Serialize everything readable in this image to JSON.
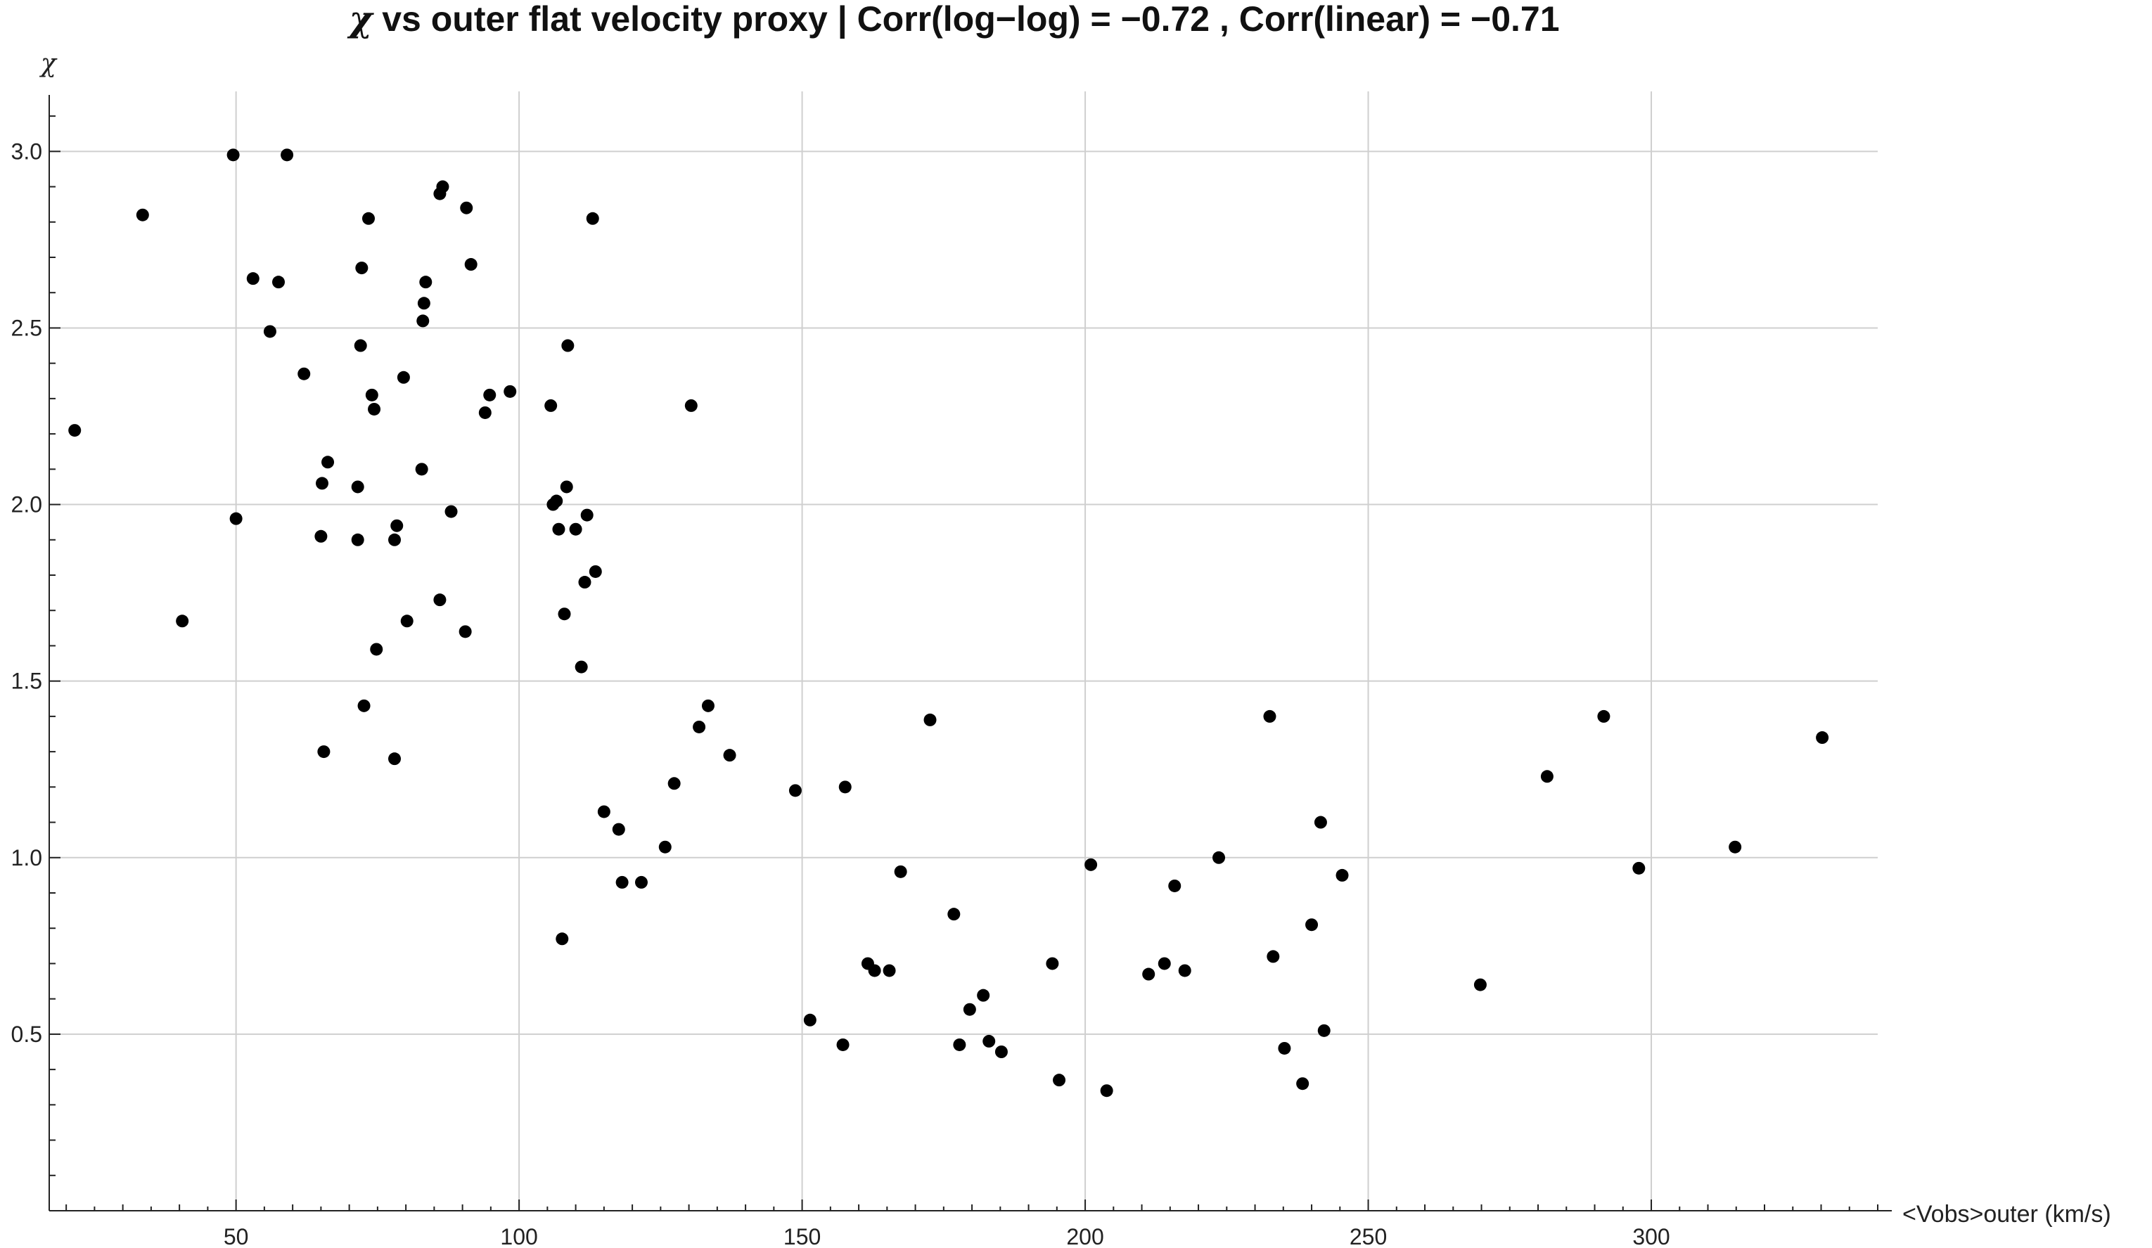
{
  "chart_data": {
    "type": "scatter",
    "title": "χ vs outer flat velocity proxy  |  Corr(log−log) = −0.72  ,  Corr(linear) = −0.71",
    "title_symbol": "χ",
    "title_rest": " vs outer flat velocity proxy  |  Corr(log−log) = −0.72  ,  Corr(linear) = −0.71",
    "xlabel": "<Vobs>outer  (km/s)",
    "ylabel": "χ",
    "xlim": [
      17,
      340
    ],
    "ylim": [
      0,
      3.15
    ],
    "x_ticks": [
      50,
      100,
      150,
      200,
      250,
      300
    ],
    "x_tick_labels": [
      "50",
      "100",
      "150",
      "200",
      "250",
      "300"
    ],
    "x_minor_step": 10,
    "y_ticks": [
      0.5,
      1.0,
      1.5,
      2.0,
      2.5,
      3.0
    ],
    "y_tick_labels": [
      "0.5",
      "1.0",
      "1.5",
      "2.0",
      "2.5",
      "3.0"
    ],
    "y_minor_step": 0.1,
    "grid": true,
    "marker_color": "#000000",
    "points": [
      [
        21.5,
        2.21
      ],
      [
        33.5,
        2.82
      ],
      [
        40.5,
        1.67
      ],
      [
        49.5,
        2.99
      ],
      [
        50.0,
        1.96
      ],
      [
        53.0,
        2.64
      ],
      [
        56.0,
        2.49
      ],
      [
        57.5,
        2.63
      ],
      [
        59.0,
        2.99
      ],
      [
        62.0,
        2.37
      ],
      [
        65.0,
        1.91
      ],
      [
        65.2,
        2.06
      ],
      [
        65.5,
        1.3
      ],
      [
        66.2,
        2.12
      ],
      [
        71.5,
        2.05
      ],
      [
        71.5,
        1.9
      ],
      [
        72.0,
        2.45
      ],
      [
        72.2,
        2.67
      ],
      [
        72.6,
        1.43
      ],
      [
        73.4,
        2.81
      ],
      [
        74.0,
        2.31
      ],
      [
        74.4,
        2.27
      ],
      [
        74.8,
        1.59
      ],
      [
        78.0,
        1.28
      ],
      [
        78.0,
        1.9
      ],
      [
        78.4,
        1.94
      ],
      [
        79.6,
        2.36
      ],
      [
        80.2,
        1.67
      ],
      [
        82.8,
        2.1
      ],
      [
        83.0,
        2.52
      ],
      [
        83.2,
        2.57
      ],
      [
        83.5,
        2.63
      ],
      [
        86.0,
        2.88
      ],
      [
        86.0,
        1.73
      ],
      [
        86.5,
        2.9
      ],
      [
        88.0,
        1.98
      ],
      [
        90.5,
        1.64
      ],
      [
        90.7,
        2.84
      ],
      [
        91.5,
        2.68
      ],
      [
        94.0,
        2.26
      ],
      [
        94.8,
        2.31
      ],
      [
        98.4,
        2.32
      ],
      [
        105.6,
        2.28
      ],
      [
        106.0,
        2.0
      ],
      [
        106.6,
        2.01
      ],
      [
        107.0,
        1.93
      ],
      [
        107.6,
        0.77
      ],
      [
        108.0,
        1.69
      ],
      [
        108.4,
        2.05
      ],
      [
        108.6,
        2.45
      ],
      [
        110.0,
        1.93
      ],
      [
        111.0,
        1.54
      ],
      [
        111.6,
        1.78
      ],
      [
        112.0,
        1.97
      ],
      [
        113.0,
        2.81
      ],
      [
        113.5,
        1.81
      ],
      [
        115.0,
        1.13
      ],
      [
        117.6,
        1.08
      ],
      [
        118.2,
        0.93
      ],
      [
        121.6,
        0.93
      ],
      [
        125.8,
        1.03
      ],
      [
        127.4,
        1.21
      ],
      [
        130.4,
        2.28
      ],
      [
        131.8,
        1.37
      ],
      [
        133.4,
        1.43
      ],
      [
        137.2,
        1.29
      ],
      [
        148.8,
        1.19
      ],
      [
        151.4,
        0.54
      ],
      [
        157.2,
        0.47
      ],
      [
        157.6,
        1.2
      ],
      [
        161.6,
        0.7
      ],
      [
        162.8,
        0.68
      ],
      [
        165.4,
        0.68
      ],
      [
        167.4,
        0.96
      ],
      [
        172.6,
        1.39
      ],
      [
        176.8,
        0.84
      ],
      [
        177.8,
        0.47
      ],
      [
        179.6,
        0.57
      ],
      [
        182.0,
        0.61
      ],
      [
        183.0,
        0.48
      ],
      [
        185.2,
        0.45
      ],
      [
        194.2,
        0.7
      ],
      [
        195.4,
        0.37
      ],
      [
        201.0,
        0.98
      ],
      [
        203.8,
        0.34
      ],
      [
        211.2,
        0.67
      ],
      [
        214.0,
        0.7
      ],
      [
        215.8,
        0.92
      ],
      [
        217.6,
        0.68
      ],
      [
        223.6,
        1.0
      ],
      [
        232.6,
        1.4
      ],
      [
        233.2,
        0.72
      ],
      [
        235.2,
        0.46
      ],
      [
        238.4,
        0.36
      ],
      [
        240.0,
        0.81
      ],
      [
        241.6,
        1.1
      ],
      [
        242.2,
        0.51
      ],
      [
        245.4,
        0.95
      ],
      [
        269.8,
        0.64
      ],
      [
        281.6,
        1.23
      ],
      [
        291.6,
        1.4
      ],
      [
        297.8,
        0.97
      ],
      [
        314.8,
        1.03
      ],
      [
        330.2,
        1.34
      ]
    ]
  }
}
